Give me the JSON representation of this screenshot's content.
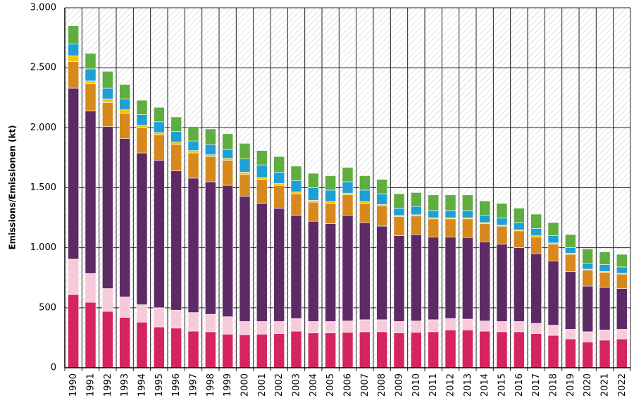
{
  "chart_data": {
    "type": "stacked-bar",
    "y_label": "Emissions/Emissionen (kt)",
    "categories": [
      "1990",
      "1991",
      "1992",
      "1993",
      "1994",
      "1995",
      "1996",
      "1997",
      "1998",
      "1999",
      "2000",
      "2001",
      "2002",
      "2003",
      "2004",
      "2005",
      "2006",
      "2007",
      "2008",
      "2009",
      "2010",
      "2011",
      "2012",
      "2013",
      "2014",
      "2015",
      "2016",
      "2017",
      "2018",
      "2019",
      "2020",
      "2021",
      "2022"
    ],
    "series": [
      {
        "color": "#d6245e",
        "values": [
          610,
          545,
          470,
          420,
          380,
          340,
          330,
          305,
          300,
          280,
          275,
          280,
          285,
          305,
          290,
          290,
          295,
          300,
          300,
          290,
          295,
          300,
          315,
          315,
          305,
          300,
          300,
          285,
          270,
          240,
          215,
          230,
          240
        ]
      },
      {
        "color": "#f7cadb",
        "values": [
          295,
          240,
          190,
          170,
          145,
          160,
          150,
          155,
          145,
          145,
          110,
          105,
          100,
          105,
          95,
          95,
          95,
          100,
          100,
          95,
          95,
          100,
          95,
          90,
          85,
          85,
          85,
          85,
          85,
          80,
          85,
          85,
          80
        ]
      },
      {
        "color": "#5e2a66",
        "values": [
          1425,
          1355,
          1350,
          1320,
          1265,
          1230,
          1160,
          1120,
          1105,
          1095,
          1045,
          985,
          945,
          860,
          835,
          815,
          880,
          810,
          780,
          715,
          720,
          690,
          680,
          680,
          660,
          645,
          615,
          580,
          535,
          480,
          380,
          355,
          340
        ]
      },
      {
        "color": "#d8891e",
        "values": [
          220,
          230,
          200,
          210,
          210,
          210,
          220,
          210,
          210,
          210,
          180,
          200,
          190,
          180,
          160,
          170,
          170,
          160,
          170,
          160,
          155,
          150,
          150,
          155,
          150,
          150,
          140,
          140,
          140,
          145,
          135,
          125,
          120
        ]
      },
      {
        "color": "#f5c400",
        "values": [
          50,
          20,
          30,
          30,
          20,
          20,
          20,
          20,
          15,
          15,
          20,
          15,
          15,
          15,
          15,
          15,
          15,
          15,
          10,
          10,
          10,
          10,
          10,
          10,
          10,
          10,
          10,
          10,
          10,
          10,
          7,
          7,
          7
        ]
      },
      {
        "color": "#1ea0d6",
        "values": [
          100,
          100,
          90,
          90,
          90,
          90,
          90,
          80,
          85,
          75,
          110,
          105,
          95,
          95,
          105,
          95,
          95,
          95,
          90,
          60,
          70,
          60,
          60,
          60,
          60,
          60,
          60,
          60,
          60,
          45,
          48,
          58,
          53
        ]
      },
      {
        "color": "#5fae3f",
        "values": [
          150,
          130,
          140,
          120,
          120,
          120,
          120,
          120,
          130,
          130,
          130,
          120,
          130,
          120,
          120,
          120,
          120,
          120,
          120,
          120,
          115,
          130,
          130,
          130,
          120,
          120,
          120,
          120,
          110,
          110,
          120,
          105,
          105
        ]
      }
    ],
    "ylim": [
      0,
      3000
    ],
    "yticks": [
      0,
      500,
      {
        "value": 1000,
        "label": "1.000"
      },
      {
        "value": 1500,
        "label": "1.500"
      },
      {
        "value": 2000,
        "label": "2.000"
      },
      {
        "value": 2500,
        "label": "2.500"
      },
      {
        "value": 3000,
        "label": "3.000"
      }
    ],
    "grid": true,
    "hatched_background": true
  }
}
